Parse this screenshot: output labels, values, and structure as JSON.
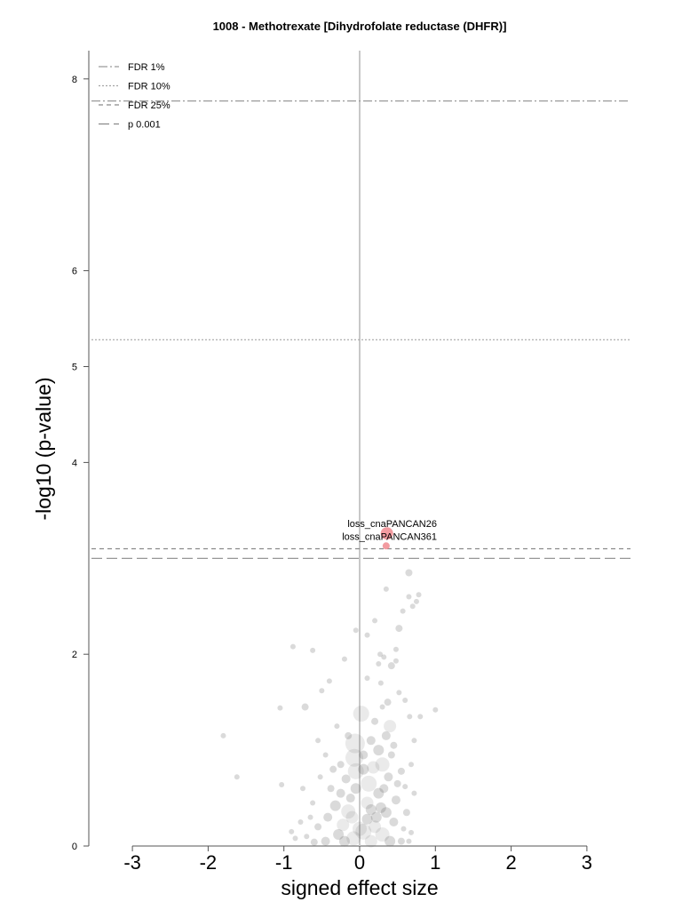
{
  "chart_data": {
    "type": "scatter",
    "title": "1008 - Methotrexate [Dihydrofolate reductase (DHFR)]",
    "xlabel": "signed effect size",
    "ylabel": "-log10 (p-value)",
    "xlim": [
      -3,
      3
    ],
    "ylim": [
      0,
      8
    ],
    "x_ticks": [
      "-3",
      "-2",
      "-1",
      "0",
      "1",
      "2",
      "3"
    ],
    "y_ticks": [
      "0",
      "2",
      "4",
      "5",
      "6",
      "8"
    ],
    "grid": false,
    "legend_position": "top-left",
    "thresholds": [
      {
        "name": "FDR 1%",
        "y": 7.77,
        "style": "dashdot"
      },
      {
        "name": "FDR 10%",
        "y": 5.28,
        "style": "dotted"
      },
      {
        "name": "FDR 25%",
        "y": 3.1,
        "style": "dashed"
      },
      {
        "name": "p 0.001",
        "y": 3.0,
        "style": "longdash"
      }
    ],
    "highlighted": [
      {
        "label": "loss_cnaPANCAN26",
        "x": 0.36,
        "y": 3.26,
        "color": "#f08a8f"
      },
      {
        "label": "loss_cnaPANCAN361",
        "x": 0.35,
        "y": 3.13,
        "color": "#f08a8f"
      }
    ],
    "points": [
      [
        -1.8,
        1.15,
        3
      ],
      [
        -1.62,
        0.72,
        3
      ],
      [
        -1.05,
        1.44,
        3
      ],
      [
        -0.88,
        2.08,
        3
      ],
      [
        -0.72,
        1.45,
        4
      ],
      [
        -0.75,
        0.6,
        3
      ],
      [
        -1.03,
        0.64,
        3
      ],
      [
        -0.62,
        2.04,
        3
      ],
      [
        -0.5,
        1.62,
        3
      ],
      [
        -0.4,
        1.72,
        3
      ],
      [
        -0.2,
        1.95,
        3
      ],
      [
        -0.05,
        2.25,
        3
      ],
      [
        0.1,
        2.2,
        3
      ],
      [
        0.2,
        2.35,
        3
      ],
      [
        0.27,
        2.0,
        3
      ],
      [
        0.32,
        1.97,
        3
      ],
      [
        0.42,
        1.88,
        4
      ],
      [
        0.48,
        1.93,
        3
      ],
      [
        0.52,
        1.6,
        3
      ],
      [
        0.6,
        1.52,
        3
      ],
      [
        0.66,
        1.35,
        3
      ],
      [
        0.72,
        1.1,
        3
      ],
      [
        0.8,
        1.35,
        3
      ],
      [
        1.0,
        1.42,
        3
      ],
      [
        0.48,
        2.05,
        3
      ],
      [
        0.57,
        2.45,
        3
      ],
      [
        0.65,
        2.6,
        3
      ],
      [
        0.7,
        2.5,
        3
      ],
      [
        0.75,
        2.55,
        3
      ],
      [
        0.78,
        2.62,
        3
      ],
      [
        0.65,
        2.85,
        4
      ],
      [
        0.35,
        2.68,
        3
      ],
      [
        0.52,
        2.27,
        4
      ],
      [
        0.37,
        1.5,
        4
      ],
      [
        0.28,
        1.7,
        3
      ],
      [
        0.1,
        1.75,
        3
      ],
      [
        0.25,
        1.9,
        3
      ],
      [
        0.02,
        1.38,
        9
      ],
      [
        -0.06,
        1.07,
        11
      ],
      [
        -0.07,
        0.92,
        10
      ],
      [
        -0.05,
        0.78,
        9
      ],
      [
        0.25,
        1.0,
        6
      ],
      [
        0.4,
        1.25,
        7
      ],
      [
        0.35,
        1.15,
        5
      ],
      [
        0.3,
        0.85,
        8
      ],
      [
        0.12,
        0.65,
        9
      ],
      [
        0.18,
        0.82,
        7
      ],
      [
        0.38,
        0.72,
        5
      ],
      [
        0.48,
        0.48,
        5
      ],
      [
        0.55,
        0.78,
        4
      ],
      [
        0.6,
        0.62,
        3
      ],
      [
        0.68,
        0.85,
        3
      ],
      [
        0.72,
        0.55,
        3
      ],
      [
        0.62,
        0.35,
        4
      ],
      [
        0.58,
        0.18,
        3
      ],
      [
        0.68,
        0.14,
        3
      ],
      [
        -0.25,
        0.55,
        5
      ],
      [
        -0.32,
        0.42,
        6
      ],
      [
        -0.15,
        0.36,
        8
      ],
      [
        -0.22,
        0.22,
        7
      ],
      [
        -0.42,
        0.3,
        5
      ],
      [
        -0.55,
        0.2,
        4
      ],
      [
        -0.62,
        0.45,
        3
      ],
      [
        -0.7,
        0.1,
        3
      ],
      [
        -0.85,
        0.08,
        3
      ],
      [
        -0.35,
        0.8,
        4
      ],
      [
        -0.45,
        0.95,
        3
      ],
      [
        -0.55,
        1.1,
        3
      ],
      [
        -0.15,
        1.15,
        4
      ],
      [
        -0.3,
        1.25,
        3
      ],
      [
        0.15,
        1.1,
        5
      ],
      [
        0.2,
        1.3,
        4
      ],
      [
        0.05,
        0.95,
        5
      ],
      [
        0.1,
        0.45,
        7
      ],
      [
        0.22,
        0.3,
        6
      ],
      [
        0.3,
        0.12,
        8
      ],
      [
        0.05,
        0.15,
        9
      ],
      [
        -0.08,
        0.08,
        8
      ],
      [
        0.15,
        0.05,
        7
      ],
      [
        0.4,
        0.05,
        6
      ],
      [
        -0.45,
        0.05,
        5
      ],
      [
        -0.6,
        0.04,
        4
      ],
      [
        -0.28,
        0.12,
        6
      ],
      [
        0.35,
        0.35,
        6
      ],
      [
        0.45,
        0.25,
        5
      ],
      [
        0.25,
        0.55,
        6
      ],
      [
        -0.05,
        0.6,
        6
      ],
      [
        -0.1,
        0.3,
        7
      ],
      [
        0.0,
        0.18,
        8
      ],
      [
        0.2,
        0.2,
        7
      ],
      [
        -0.2,
        0.05,
        6
      ],
      [
        0.1,
        0.28,
        6
      ],
      [
        0.32,
        0.6,
        5
      ],
      [
        0.5,
        0.65,
        4
      ],
      [
        0.42,
        0.95,
        4
      ],
      [
        0.45,
        1.05,
        4
      ],
      [
        0.3,
        1.45,
        3
      ],
      [
        -0.12,
        0.5,
        5
      ],
      [
        -0.38,
        0.6,
        4
      ],
      [
        -0.52,
        0.72,
        3
      ],
      [
        -0.65,
        0.3,
        3
      ],
      [
        -0.78,
        0.25,
        3
      ],
      [
        -0.9,
        0.15,
        3
      ],
      [
        0.55,
        0.05,
        4
      ],
      [
        0.65,
        0.05,
        3
      ],
      [
        -0.25,
        0.85,
        4
      ],
      [
        -0.18,
        0.7,
        5
      ],
      [
        0.05,
        0.8,
        6
      ],
      [
        0.28,
        0.4,
        6
      ],
      [
        0.15,
        0.38,
        6
      ]
    ]
  }
}
